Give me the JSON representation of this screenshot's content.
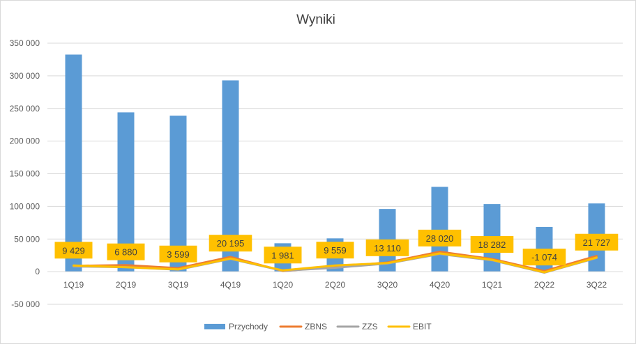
{
  "chart_data": {
    "type": "bar",
    "title": "Wyniki",
    "xlabel": "",
    "ylabel": "",
    "ylim": [
      -50000,
      350000
    ],
    "y_ticks": [
      -50000,
      0,
      50000,
      100000,
      150000,
      200000,
      250000,
      300000,
      350000
    ],
    "y_tick_labels": [
      "-50 000",
      "0",
      "50 000",
      "100 000",
      "150 000",
      "200 000",
      "250 000",
      "300 000",
      "350 000"
    ],
    "grid": true,
    "legend_position": "bottom",
    "categories": [
      "1Q19",
      "2Q19",
      "3Q19",
      "4Q19",
      "1Q20",
      "2Q20",
      "3Q20",
      "4Q20",
      "1Q21",
      "2Q22",
      "3Q22"
    ],
    "series": [
      {
        "name": "Przychody",
        "type": "bar",
        "color": "#5b9bd5",
        "values": [
          332500,
          244000,
          239000,
          293000,
          43500,
          51000,
          96000,
          130000,
          103500,
          68500,
          104500
        ]
      },
      {
        "name": "ZBNS",
        "type": "line",
        "color": "#ed7d31",
        "values": [
          9000,
          10000,
          5500,
          22500,
          1000,
          7500,
          14000,
          30500,
          19500,
          1000,
          24000
        ]
      },
      {
        "name": "ZZS",
        "type": "line",
        "color": "#a5a5a5",
        "values": [
          8000,
          7000,
          3000,
          19500,
          1500,
          6000,
          12500,
          27000,
          17500,
          -1500,
          21000
        ]
      },
      {
        "name": "EBIT",
        "type": "line",
        "color": "#ffc000",
        "values": [
          9429,
          6880,
          3599,
          20195,
          1981,
          9559,
          13110,
          28020,
          18282,
          -1074,
          21727
        ],
        "data_labels": [
          "9 429",
          "6 880",
          "3 599",
          "20 195",
          "1 981",
          "9 559",
          "13 110",
          "28 020",
          "18 282",
          "-1 074",
          "21 727"
        ]
      }
    ]
  }
}
